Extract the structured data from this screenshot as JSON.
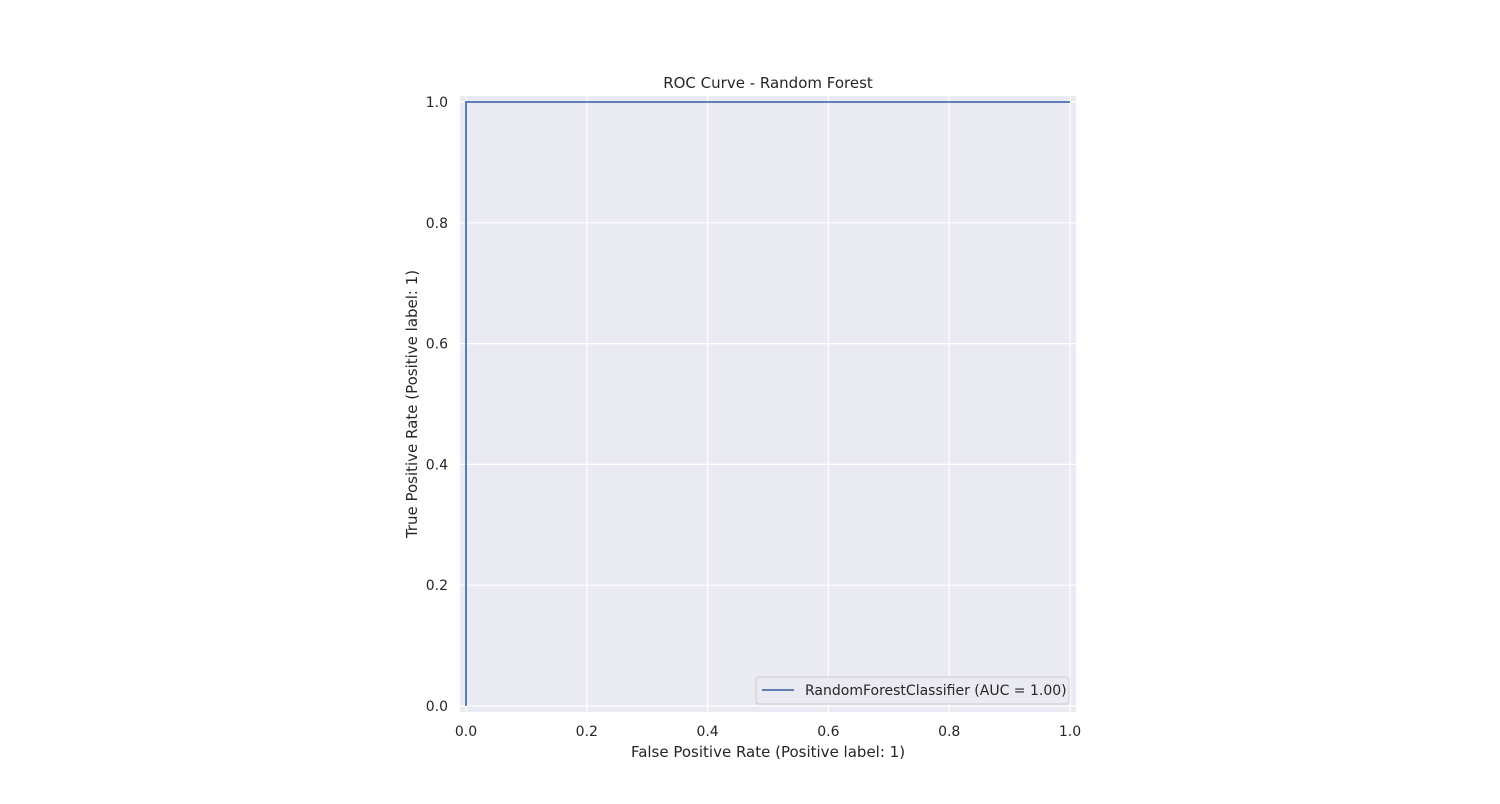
{
  "chart_data": {
    "type": "line",
    "title": "ROC Curve - Random Forest",
    "xlabel": "False Positive Rate (Positive label: 1)",
    "ylabel": "True Positive Rate (Positive label: 1)",
    "xlim": [
      0.0,
      1.0
    ],
    "ylim": [
      0.0,
      1.0
    ],
    "x_ticks": [
      0.0,
      0.2,
      0.4,
      0.6,
      0.8,
      1.0
    ],
    "y_ticks": [
      0.0,
      0.2,
      0.4,
      0.6,
      0.8,
      1.0
    ],
    "x_tick_labels": [
      "0.0",
      "0.2",
      "0.4",
      "0.6",
      "0.8",
      "1.0"
    ],
    "y_tick_labels": [
      "0.0",
      "0.2",
      "0.4",
      "0.6",
      "0.8",
      "1.0"
    ],
    "grid": true,
    "legend_position": "lower-right",
    "series": [
      {
        "name": "RandomForestClassifier (AUC = 1.00)",
        "color": "#4c72b0",
        "x": [
          0.0,
          0.0,
          1.0
        ],
        "y": [
          0.0,
          1.0,
          1.0
        ]
      }
    ],
    "colors": {
      "plot_background": "#eaeaf2",
      "grid": "#ffffff",
      "text": "#262626"
    }
  }
}
